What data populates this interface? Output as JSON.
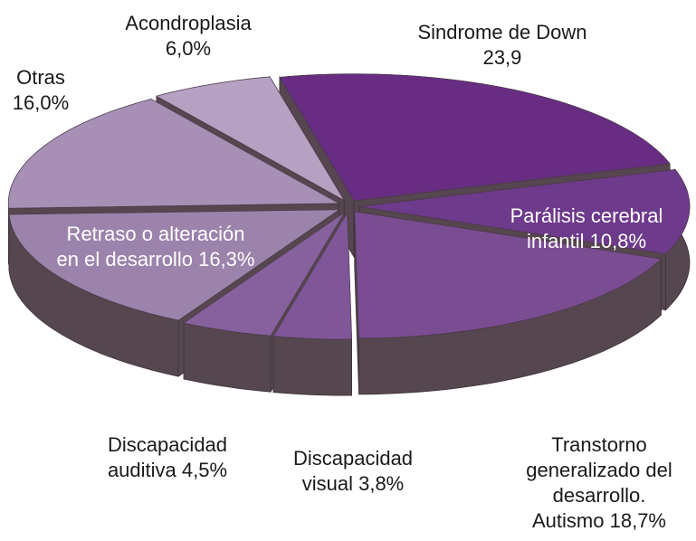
{
  "chart_data": {
    "type": "pie3d",
    "categories": [
      "Sindrome de Down",
      "Parálisis cerebral infantil",
      "Transtorno generalizado del desarrollo. Autismo",
      "Discapacidad visual",
      "Discapacidad auditiva",
      "Retraso o alteración en el desarrollo",
      "Otras",
      "Acondroplasia"
    ],
    "values": [
      23.9,
      10.8,
      18.7,
      3.8,
      4.5,
      16.3,
      16.0,
      6.0
    ],
    "value_labels": [
      "23,9",
      "10,8%",
      "18,7%",
      "3,8%",
      "4,5%",
      "16,3%",
      "16,0%",
      "6,0%"
    ],
    "colors": [
      "#682d83",
      "#6e3a8b",
      "#7a4d93",
      "#7f5697",
      "#86619d",
      "#9c83ab",
      "#a78fb5",
      "#b7a1c3"
    ]
  }
}
